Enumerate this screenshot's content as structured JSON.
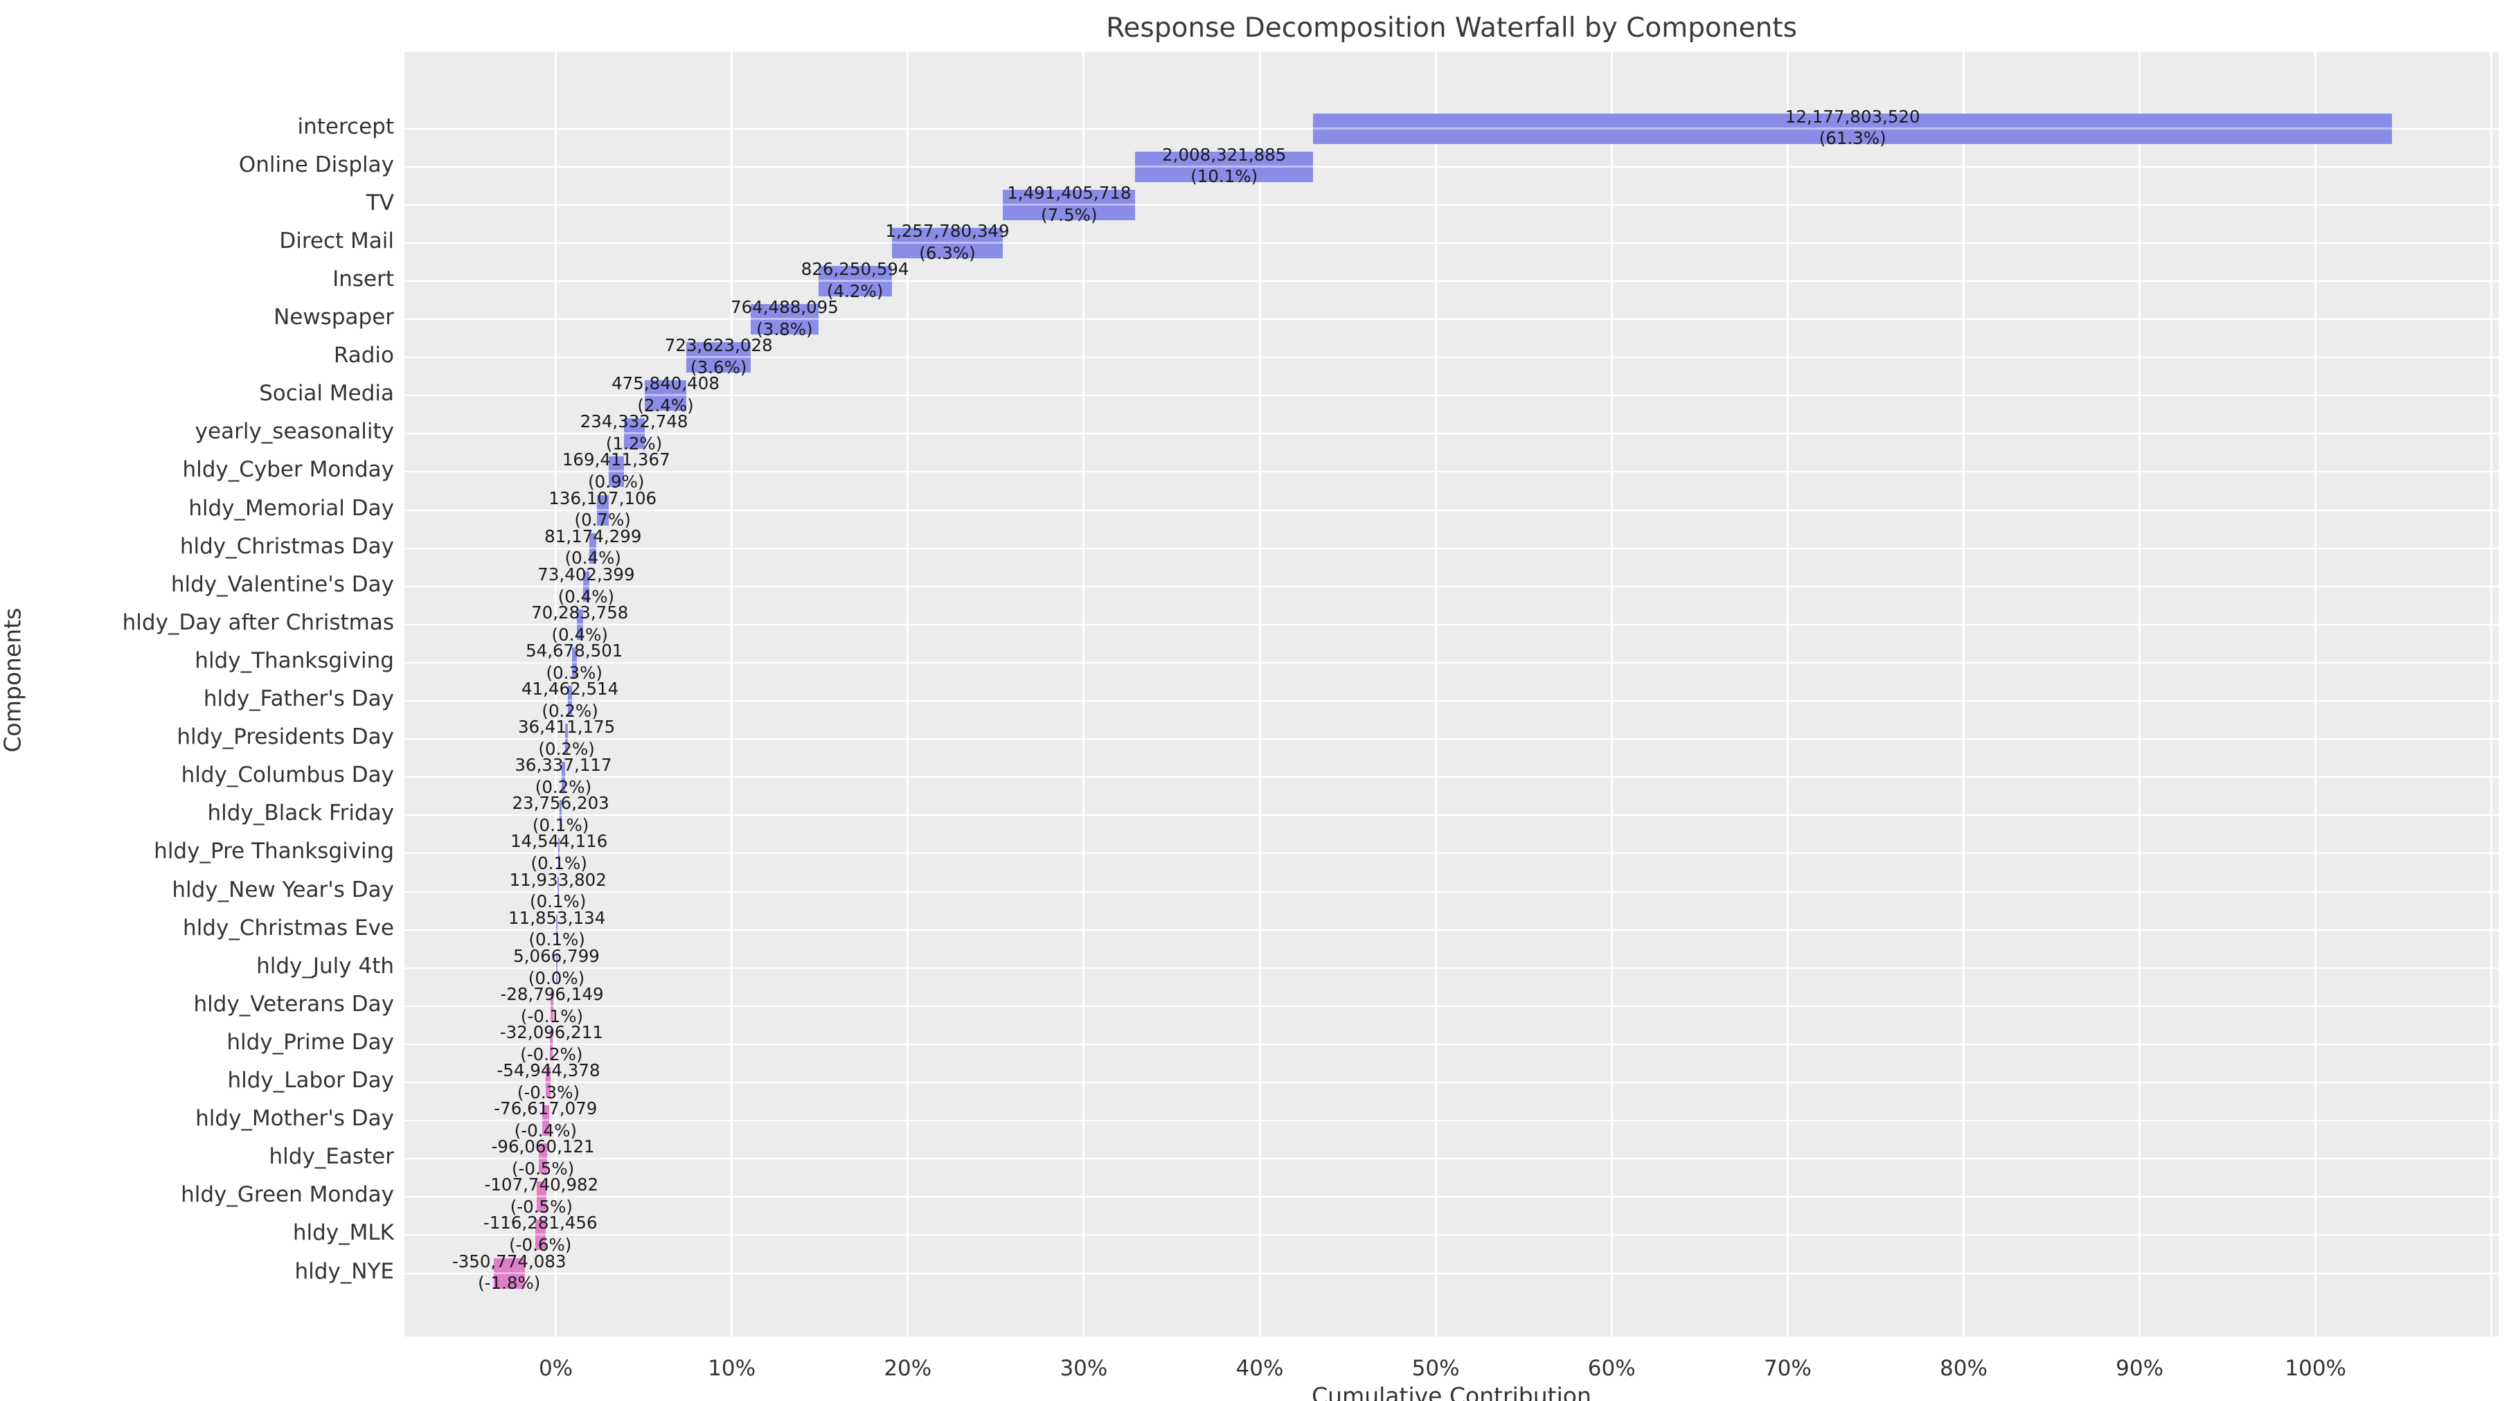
{
  "title": "Response Decomposition Waterfall by Components",
  "axis": {
    "xlabel": "Cumulative Contribution",
    "ylabel": "Components",
    "x_ticks": [
      "0%",
      "10%",
      "20%",
      "30%",
      "40%",
      "50%",
      "60%",
      "70%",
      "80%",
      "90%",
      "100%"
    ]
  },
  "chart_data": {
    "type": "bar",
    "subtype": "horizontal-waterfall",
    "title": "Response Decomposition Waterfall by Components",
    "xlabel": "Cumulative Contribution",
    "ylabel": "Components",
    "x_axis_range_pct": [
      -8.6,
      110.4
    ],
    "x_tick_step_pct": 10,
    "grid": true,
    "plot_bg_color": "#ececec",
    "grid_color": "#ffffff",
    "positive_color": "#8a8de8",
    "negative_color": "#de7fc8",
    "components": [
      {
        "label": "intercept",
        "value": 12177803520,
        "value_label": "12,177,803,520",
        "pct_label": "(61.3%)"
      },
      {
        "label": "Online Display",
        "value": 2008321885,
        "value_label": "2,008,321,885",
        "pct_label": "(10.1%)"
      },
      {
        "label": "TV",
        "value": 1491405718,
        "value_label": "1,491,405,718",
        "pct_label": "(7.5%)"
      },
      {
        "label": "Direct Mail",
        "value": 1257780349,
        "value_label": "1,257,780,349",
        "pct_label": "(6.3%)"
      },
      {
        "label": "Insert",
        "value": 826250594,
        "value_label": "826,250,594",
        "pct_label": "(4.2%)"
      },
      {
        "label": "Newspaper",
        "value": 764488095,
        "value_label": "764,488,095",
        "pct_label": "(3.8%)"
      },
      {
        "label": "Radio",
        "value": 723623028,
        "value_label": "723,623,028",
        "pct_label": "(3.6%)"
      },
      {
        "label": "Social Media",
        "value": 475840408,
        "value_label": "475,840,408",
        "pct_label": "(2.4%)"
      },
      {
        "label": "yearly_seasonality",
        "value": 234332748,
        "value_label": "234,332,748",
        "pct_label": "(1.2%)"
      },
      {
        "label": "hldy_Cyber Monday",
        "value": 169411367,
        "value_label": "169,411,367",
        "pct_label": "(0.9%)"
      },
      {
        "label": "hldy_Memorial Day",
        "value": 136107106,
        "value_label": "136,107,106",
        "pct_label": "(0.7%)"
      },
      {
        "label": "hldy_Christmas Day",
        "value": 81174299,
        "value_label": "81,174,299",
        "pct_label": "(0.4%)"
      },
      {
        "label": "hldy_Valentine's Day",
        "value": 73402399,
        "value_label": "73,402,399",
        "pct_label": "(0.4%)"
      },
      {
        "label": "hldy_Day after Christmas",
        "value": 70283758,
        "value_label": "70,283,758",
        "pct_label": "(0.4%)"
      },
      {
        "label": "hldy_Thanksgiving",
        "value": 54678501,
        "value_label": "54,678,501",
        "pct_label": "(0.3%)"
      },
      {
        "label": "hldy_Father's Day",
        "value": 41462514,
        "value_label": "41,462,514",
        "pct_label": "(0.2%)"
      },
      {
        "label": "hldy_Presidents Day",
        "value": 36411175,
        "value_label": "36,411,175",
        "pct_label": "(0.2%)"
      },
      {
        "label": "hldy_Columbus Day",
        "value": 36337117,
        "value_label": "36,337,117",
        "pct_label": "(0.2%)"
      },
      {
        "label": "hldy_Black Friday",
        "value": 23756203,
        "value_label": "23,756,203",
        "pct_label": "(0.1%)"
      },
      {
        "label": "hldy_Pre Thanksgiving",
        "value": 14544116,
        "value_label": "14,544,116",
        "pct_label": "(0.1%)"
      },
      {
        "label": "hldy_New Year's Day",
        "value": 11933802,
        "value_label": "11,933,802",
        "pct_label": "(0.1%)"
      },
      {
        "label": "hldy_Christmas Eve",
        "value": 11853134,
        "value_label": "11,853,134",
        "pct_label": "(0.1%)"
      },
      {
        "label": "hldy_July 4th",
        "value": 5066799,
        "value_label": "5,066,799",
        "pct_label": "(0.0%)"
      },
      {
        "label": "hldy_Veterans Day",
        "value": -28796149,
        "value_label": "-28,796,149",
        "pct_label": "(-0.1%)"
      },
      {
        "label": "hldy_Prime Day",
        "value": -32096211,
        "value_label": "-32,096,211",
        "pct_label": "(-0.2%)"
      },
      {
        "label": "hldy_Labor Day",
        "value": -54944378,
        "value_label": "-54,944,378",
        "pct_label": "(-0.3%)"
      },
      {
        "label": "hldy_Mother's Day",
        "value": -76617079,
        "value_label": "-76,617,079",
        "pct_label": "(-0.4%)"
      },
      {
        "label": "hldy_Easter",
        "value": -96060121,
        "value_label": "-96,060,121",
        "pct_label": "(-0.5%)"
      },
      {
        "label": "hldy_Green Monday",
        "value": -107740982,
        "value_label": "-107,740,982",
        "pct_label": "(-0.5%)"
      },
      {
        "label": "hldy_MLK",
        "value": -116281456,
        "value_label": "-116,281,456",
        "pct_label": "(-0.6%)"
      },
      {
        "label": "hldy_NYE",
        "value": -350774083,
        "value_label": "-350,774,083",
        "pct_label": "(-1.8%)"
      }
    ]
  }
}
